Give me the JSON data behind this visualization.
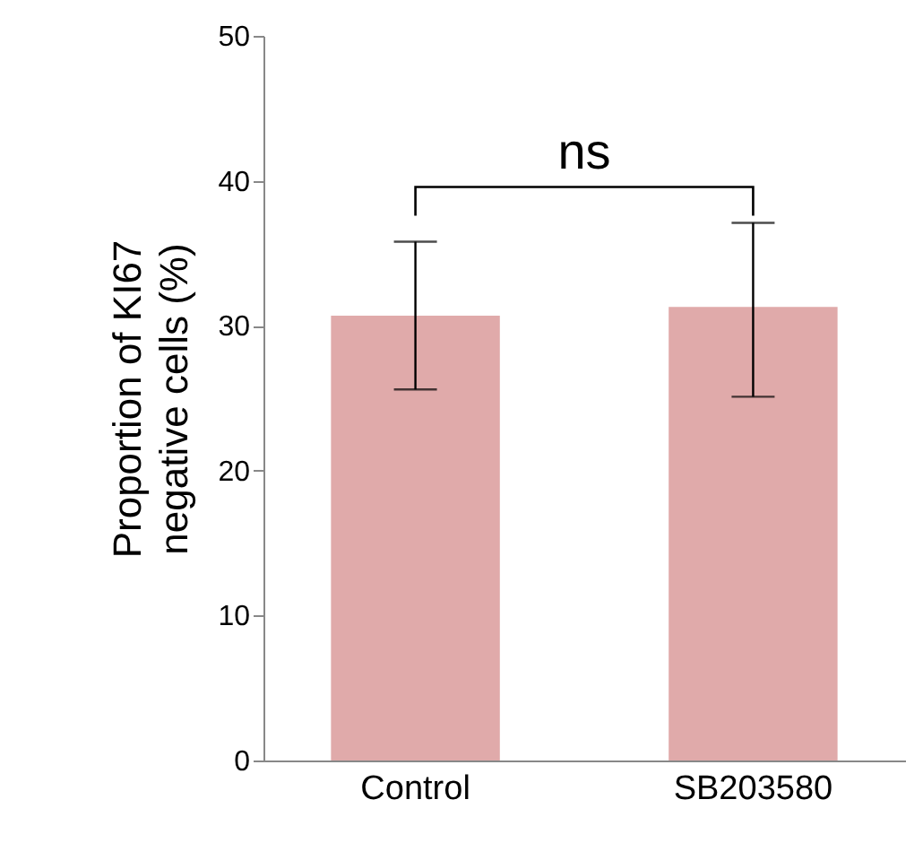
{
  "chart_data": {
    "type": "bar",
    "ylabel": "Proportion of KI67 negative cells (%)",
    "categories": [
      "Control",
      "SB203580"
    ],
    "values": [
      30.7,
      31.3
    ],
    "errors": [
      [
        25.6,
        35.8
      ],
      [
        25.1,
        37.1
      ]
    ],
    "color": "#e0aaaa",
    "ylim": [
      0,
      50
    ],
    "yticks": [
      0,
      10,
      20,
      30,
      40,
      50
    ],
    "grid": false,
    "annotations": [
      "ns"
    ]
  }
}
